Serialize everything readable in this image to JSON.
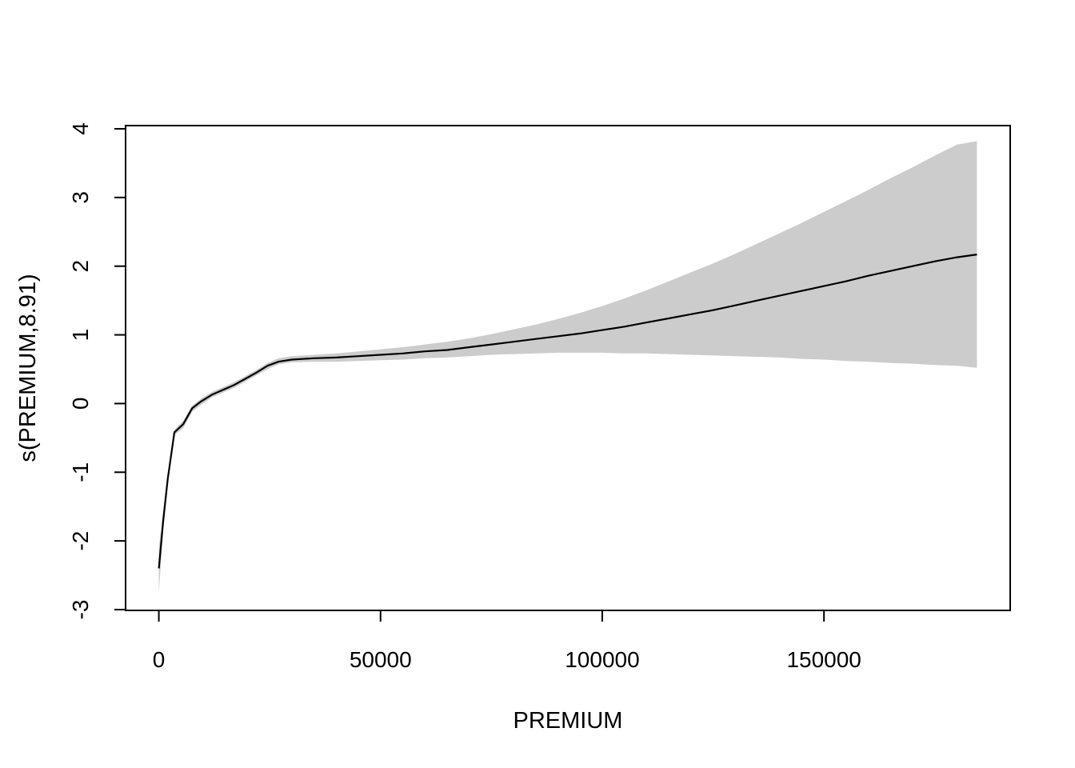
{
  "chart_data": {
    "type": "line",
    "title": "",
    "xlabel": "PREMIUM",
    "ylabel": "s(PREMIUM,8.91)",
    "xlim": [
      -7500,
      192000
    ],
    "ylim": [
      -3,
      4
    ],
    "x_ticks": [
      0,
      50000,
      100000,
      150000
    ],
    "y_ticks": [
      -3,
      -2,
      -1,
      0,
      1,
      2,
      3,
      4
    ],
    "x_tick_labels": [
      "0",
      "50000",
      "100000",
      "150000"
    ],
    "y_tick_labels": [
      "-3",
      "-2",
      "-1",
      "0",
      "1",
      "2",
      "3",
      "4"
    ],
    "grid": false,
    "legend": "none",
    "colors": {
      "line": "#000000",
      "band": "#cccccc",
      "frame": "#000000"
    },
    "series": [
      {
        "x": [
          0,
          1000,
          2000,
          3500,
          5500,
          7500,
          9500,
          12000,
          14500,
          17000,
          19500,
          22000,
          24500,
          27000,
          30000,
          35000,
          40000,
          45000,
          50000,
          55000,
          60000,
          65000,
          70000,
          75000,
          80000,
          85000,
          90000,
          95000,
          100000,
          105000,
          110000,
          115000,
          120000,
          125000,
          130000,
          135000,
          140000,
          145000,
          150000,
          155000,
          160000,
          165000,
          170000,
          175000,
          180000,
          184500
        ],
        "values": [
          -2.4,
          -1.7,
          -1.1,
          -0.42,
          -0.3,
          -0.07,
          0.03,
          0.13,
          0.2,
          0.27,
          0.36,
          0.45,
          0.55,
          0.61,
          0.64,
          0.66,
          0.67,
          0.69,
          0.71,
          0.73,
          0.76,
          0.78,
          0.82,
          0.86,
          0.9,
          0.94,
          0.98,
          1.02,
          1.07,
          1.12,
          1.18,
          1.24,
          1.3,
          1.36,
          1.43,
          1.5,
          1.57,
          1.64,
          1.71,
          1.78,
          1.86,
          1.93,
          2.0,
          2.07,
          2.13,
          2.17
        ],
        "lower": [
          -2.75,
          -1.85,
          -1.17,
          -0.46,
          -0.36,
          -0.12,
          -0.02,
          0.09,
          0.16,
          0.23,
          0.32,
          0.41,
          0.5,
          0.57,
          0.6,
          0.61,
          0.61,
          0.62,
          0.63,
          0.64,
          0.66,
          0.67,
          0.69,
          0.71,
          0.72,
          0.73,
          0.74,
          0.74,
          0.74,
          0.73,
          0.73,
          0.72,
          0.71,
          0.7,
          0.69,
          0.68,
          0.67,
          0.65,
          0.64,
          0.62,
          0.61,
          0.59,
          0.58,
          0.56,
          0.55,
          0.52
        ],
        "upper": [
          -2.1,
          -1.55,
          -1.03,
          -0.38,
          -0.25,
          -0.03,
          0.07,
          0.17,
          0.24,
          0.31,
          0.4,
          0.49,
          0.59,
          0.66,
          0.69,
          0.71,
          0.73,
          0.76,
          0.79,
          0.82,
          0.86,
          0.9,
          0.95,
          1.01,
          1.08,
          1.15,
          1.23,
          1.32,
          1.42,
          1.53,
          1.65,
          1.78,
          1.91,
          2.04,
          2.18,
          2.33,
          2.48,
          2.63,
          2.79,
          2.95,
          3.11,
          3.28,
          3.44,
          3.61,
          3.77,
          3.82
        ]
      }
    ]
  }
}
